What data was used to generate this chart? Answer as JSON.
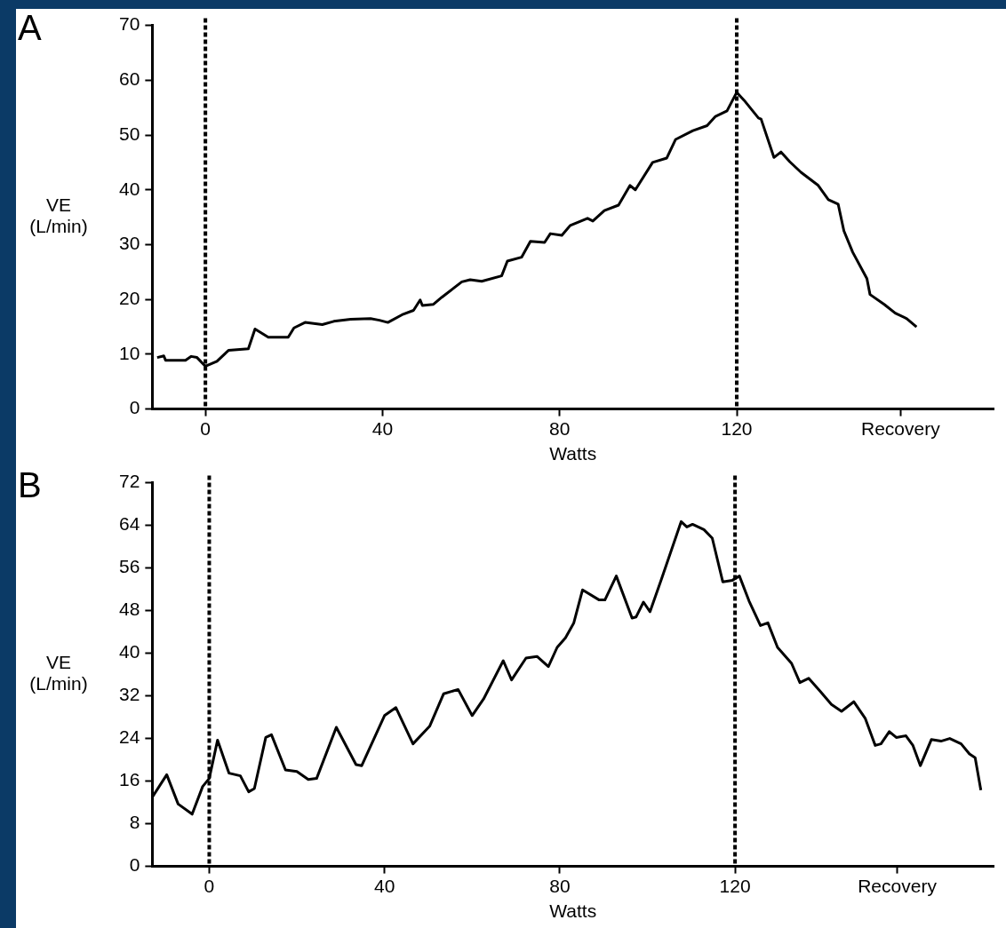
{
  "chart_data": [
    {
      "type": "line",
      "title": "A",
      "xlabel": "Watts",
      "ylabel": "VE (L/min)",
      "xlim": [
        -12,
        178
      ],
      "ylim": [
        0,
        70
      ],
      "xticks": [
        0,
        40,
        80,
        120,
        {
          "value": 157,
          "label": "Recovery"
        }
      ],
      "yticks": [
        0,
        10,
        20,
        30,
        40,
        50,
        60,
        70
      ],
      "x": [
        -10.9,
        -9.4,
        -9,
        -4.5,
        -3.2,
        -1.9,
        0,
        2.6,
        5.2,
        9.7,
        11.2,
        14.2,
        18.7,
        20,
        22.5,
        26.4,
        29,
        32.8,
        37.3,
        39.3,
        41.2,
        44.4,
        47,
        48.5,
        49,
        51.5,
        53.4,
        57.9,
        59.8,
        62.4,
        66.9,
        68.2,
        71.4,
        73.4,
        76.6,
        77.9,
        80.5,
        82.4,
        86.3,
        87.5,
        90.1,
        93.3,
        95.9,
        97.1,
        101,
        104.2,
        106.2,
        110.1,
        113.3,
        115.2,
        117.8,
        120,
        121.7,
        124.9,
        125.5,
        128.4,
        130,
        132,
        134.5,
        138.4,
        140.7,
        142.9,
        144.2,
        146.2,
        149.4,
        150.1,
        153.3,
        155.8,
        158.4,
        160.6
      ],
      "series": [
        {
          "color": "#000000",
          "values": [
            9.4,
            9.7,
            8.9,
            8.9,
            9.6,
            9.4,
            7.8,
            8.7,
            10.7,
            11,
            14.6,
            13.1,
            13.1,
            14.8,
            15.8,
            15.4,
            16,
            16.4,
            16.5,
            16.2,
            15.8,
            17.2,
            18,
            19.9,
            18.9,
            19.1,
            20.4,
            23.2,
            23.6,
            23.3,
            24.3,
            27,
            27.7,
            30.6,
            30.4,
            32,
            31.7,
            33.5,
            34.8,
            34.3,
            36.2,
            37.2,
            40.8,
            40,
            45,
            45.8,
            49.2,
            50.8,
            51.7,
            53.4,
            54.4,
            57.8,
            56.3,
            53.1,
            52.9,
            45.9,
            46.9,
            45.1,
            43.2,
            40.8,
            38.2,
            37.4,
            32.5,
            28.6,
            23.8,
            20.9,
            19.1,
            17.5,
            16.5,
            15
          ]
        }
      ],
      "ref_lines": [
        {
          "axis": "x",
          "value": 0,
          "color": "#000000",
          "line_style": "dashed"
        },
        {
          "axis": "x",
          "value": 120,
          "color": "#000000",
          "line_style": "dashed"
        }
      ]
    },
    {
      "type": "line",
      "title": "B",
      "xlabel": "Watts",
      "ylabel": "VE (L/min)",
      "xlim": [
        -13,
        179
      ],
      "ylim": [
        0,
        72
      ],
      "xticks": [
        0,
        40,
        80,
        120,
        {
          "value": 157,
          "label": "Recovery"
        }
      ],
      "yticks": [
        0,
        8,
        16,
        24,
        32,
        40,
        48,
        56,
        64,
        72
      ],
      "x": [
        -12.9,
        -9.7,
        -7.1,
        -3.9,
        -1.5,
        0,
        1.9,
        4.5,
        7.1,
        9,
        10.3,
        12.9,
        14.2,
        17.4,
        20,
        22.6,
        24.5,
        29,
        33.5,
        34.8,
        40,
        42.6,
        46.5,
        50.3,
        53.5,
        56.8,
        60,
        62.6,
        67.1,
        69,
        72.3,
        74.8,
        77.4,
        79.4,
        81.3,
        83.2,
        85.2,
        89,
        90.3,
        92.9,
        96.5,
        97.4,
        99.1,
        100.6,
        103.2,
        107.7,
        109,
        110.3,
        112.9,
        114.8,
        117.2,
        119.4,
        121,
        123.2,
        125.8,
        127.5,
        129.7,
        132.9,
        134.8,
        136.8,
        139.4,
        142,
        144.3,
        147.1,
        149.7,
        152,
        153.3,
        155.2,
        156.8,
        159,
        160.6,
        162.3,
        164.8,
        167,
        169,
        171.6,
        173.5,
        174.8,
        176.1
      ],
      "series": [
        {
          "color": "#000000",
          "values": [
            13.1,
            17.2,
            11.7,
            9.8,
            15,
            16.5,
            23.7,
            17.5,
            17,
            14,
            14.6,
            24.2,
            24.7,
            18.1,
            17.8,
            16.3,
            16.5,
            26.1,
            19.1,
            18.9,
            28.3,
            29.8,
            23,
            26.3,
            32.4,
            33.2,
            28.3,
            31.4,
            38.6,
            35,
            39.1,
            39.4,
            37.5,
            41.1,
            42.9,
            45.7,
            51.9,
            50,
            50,
            54.5,
            46.6,
            46.8,
            49.6,
            47.8,
            53.9,
            64.7,
            63.7,
            64.2,
            63.2,
            61.6,
            53.4,
            53.7,
            54.5,
            49.8,
            45.2,
            45.7,
            41.1,
            38.1,
            34.5,
            35.3,
            32.9,
            30.4,
            29.1,
            30.9,
            27.8,
            22.7,
            23,
            25.3,
            24.2,
            24.5,
            22.7,
            18.9,
            23.8,
            23.5,
            24,
            23,
            21.1,
            20.4,
            14.3
          ]
        }
      ],
      "ref_lines": [
        {
          "axis": "x",
          "value": 0,
          "color": "#000000",
          "line_style": "dashed"
        },
        {
          "axis": "x",
          "value": 120,
          "color": "#000000",
          "line_style": "dashed"
        }
      ]
    }
  ]
}
